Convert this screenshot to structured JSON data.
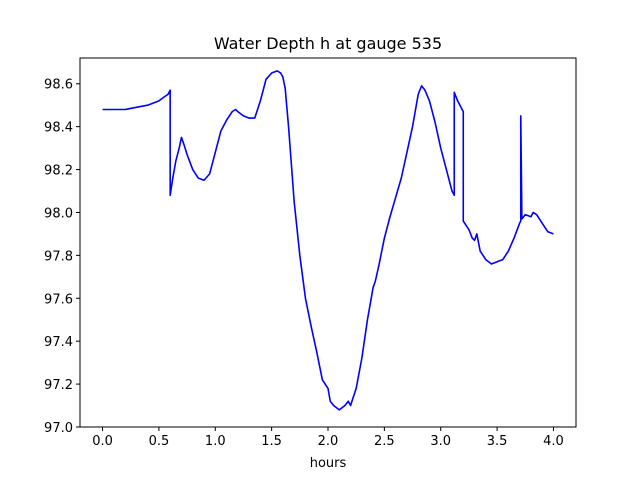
{
  "chart_data": {
    "type": "line",
    "title": "Water Depth h at gauge 535",
    "xlabel": "hours",
    "ylabel": "",
    "xlim": [
      -0.2,
      4.2
    ],
    "ylim": [
      97.0,
      98.72
    ],
    "xticks": [
      0.0,
      0.5,
      1.0,
      1.5,
      2.0,
      2.5,
      3.0,
      3.5,
      4.0
    ],
    "xtick_labels": [
      "0.0",
      "0.5",
      "1.0",
      "1.5",
      "2.0",
      "2.5",
      "3.0",
      "3.5",
      "4.0"
    ],
    "yticks": [
      97.0,
      97.2,
      97.4,
      97.6,
      97.8,
      98.0,
      98.2,
      98.4,
      98.6
    ],
    "ytick_labels": [
      "97.0",
      "97.2",
      "97.4",
      "97.6",
      "97.8",
      "98.0",
      "98.2",
      "98.4",
      "98.6"
    ],
    "grid": false,
    "legend": "none",
    "series": [
      {
        "color": "#0000ff",
        "x": [
          0.0,
          0.1,
          0.2,
          0.3,
          0.4,
          0.5,
          0.55,
          0.58,
          0.6,
          0.6,
          0.62,
          0.65,
          0.68,
          0.7,
          0.72,
          0.75,
          0.8,
          0.85,
          0.9,
          0.95,
          1.0,
          1.05,
          1.1,
          1.15,
          1.18,
          1.2,
          1.25,
          1.3,
          1.35,
          1.4,
          1.45,
          1.5,
          1.55,
          1.58,
          1.6,
          1.62,
          1.65,
          1.7,
          1.75,
          1.8,
          1.85,
          1.9,
          1.95,
          2.0,
          2.02,
          2.05,
          2.1,
          2.15,
          2.18,
          2.2,
          2.25,
          2.3,
          2.35,
          2.4,
          2.42,
          2.45,
          2.5,
          2.55,
          2.6,
          2.65,
          2.7,
          2.75,
          2.8,
          2.83,
          2.86,
          2.9,
          2.95,
          3.0,
          3.05,
          3.1,
          3.12,
          3.12,
          3.15,
          3.2,
          3.2,
          3.25,
          3.28,
          3.3,
          3.32,
          3.35,
          3.4,
          3.45,
          3.5,
          3.55,
          3.6,
          3.65,
          3.7,
          3.71,
          3.71,
          3.72,
          3.75,
          3.8,
          3.82,
          3.85,
          3.9,
          3.95,
          4.0
        ],
        "y": [
          98.48,
          98.48,
          98.48,
          98.49,
          98.5,
          98.52,
          98.54,
          98.55,
          98.57,
          98.08,
          98.15,
          98.24,
          98.3,
          98.35,
          98.32,
          98.27,
          98.2,
          98.16,
          98.15,
          98.18,
          98.28,
          98.38,
          98.43,
          98.47,
          98.48,
          98.47,
          98.45,
          98.44,
          98.44,
          98.52,
          98.62,
          98.65,
          98.66,
          98.65,
          98.63,
          98.58,
          98.4,
          98.05,
          97.8,
          97.6,
          97.47,
          97.35,
          97.22,
          97.18,
          97.12,
          97.1,
          97.08,
          97.1,
          97.12,
          97.1,
          97.18,
          97.32,
          97.5,
          97.65,
          97.68,
          97.75,
          97.88,
          97.98,
          98.07,
          98.16,
          98.28,
          98.4,
          98.55,
          98.59,
          98.57,
          98.52,
          98.42,
          98.3,
          98.2,
          98.1,
          98.08,
          98.56,
          98.52,
          98.47,
          97.96,
          97.92,
          97.88,
          97.87,
          97.9,
          97.82,
          97.78,
          97.76,
          97.77,
          97.78,
          97.82,
          97.88,
          97.95,
          97.96,
          98.45,
          97.97,
          97.99,
          97.98,
          98.0,
          97.99,
          97.95,
          97.91,
          97.9
        ]
      }
    ]
  }
}
